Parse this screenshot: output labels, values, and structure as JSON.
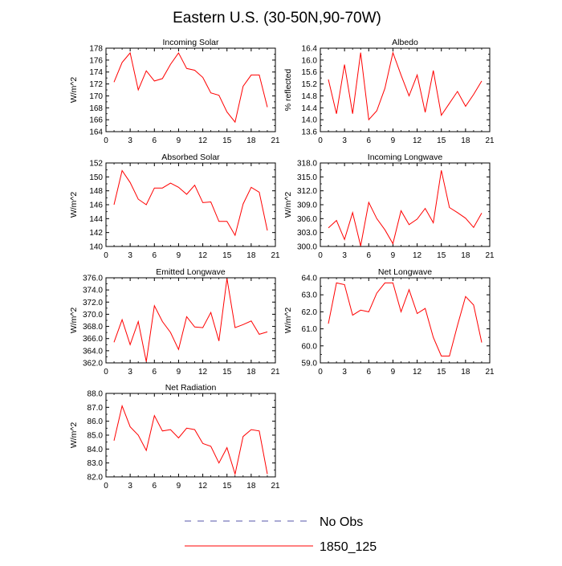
{
  "figure": {
    "title": "Eastern U.S. (30-50N,90-70W)"
  },
  "legend": [
    {
      "label": "No Obs",
      "color": "#5555aa",
      "style": "dashed"
    },
    {
      "label": "1850_125",
      "color": "#ff0000",
      "style": "solid"
    }
  ],
  "chart_data": [
    {
      "type": "line",
      "title": "Incoming Solar",
      "ylabel": "W/m^2",
      "xlim": [
        0,
        21
      ],
      "xticks": [
        0,
        3,
        6,
        9,
        12,
        15,
        18,
        21
      ],
      "ylim": [
        164,
        178
      ],
      "yticks": [
        "164",
        "166",
        "168",
        "170",
        "172",
        "174",
        "176",
        "178"
      ],
      "x": [
        1,
        2,
        3,
        4,
        5,
        6,
        7,
        8,
        9,
        10,
        11,
        12,
        13,
        14,
        15,
        16,
        17,
        18,
        19,
        20
      ],
      "series": [
        {
          "name": "1850_125",
          "color": "#ff0000",
          "values": [
            172.3,
            175.6,
            177.2,
            171.0,
            174.2,
            172.5,
            172.9,
            175.3,
            177.2,
            174.6,
            174.3,
            173.1,
            170.5,
            170.1,
            167.3,
            165.6,
            171.6,
            173.5,
            173.5,
            168.1
          ]
        }
      ]
    },
    {
      "type": "line",
      "title": "Albedo",
      "ylabel": "% reflected",
      "xlim": [
        0,
        21
      ],
      "xticks": [
        0,
        3,
        6,
        9,
        12,
        15,
        18,
        21
      ],
      "ylim": [
        13.6,
        16.4
      ],
      "yticks": [
        "13.6",
        "14.0",
        "14.4",
        "14.8",
        "15.2",
        "15.6",
        "16.0",
        "16.4"
      ],
      "x": [
        1,
        2,
        3,
        4,
        5,
        6,
        7,
        8,
        9,
        10,
        11,
        12,
        13,
        14,
        15,
        16,
        17,
        18,
        19,
        20
      ],
      "series": [
        {
          "name": "1850_125",
          "color": "#ff0000",
          "values": [
            15.35,
            14.2,
            15.85,
            14.2,
            16.25,
            14.0,
            14.3,
            15.05,
            16.25,
            15.5,
            14.8,
            15.5,
            14.25,
            15.65,
            14.15,
            14.55,
            14.95,
            14.45,
            14.85,
            15.3
          ]
        }
      ]
    },
    {
      "type": "line",
      "title": "Absorbed Solar",
      "ylabel": "W/m^2",
      "xlim": [
        0,
        21
      ],
      "xticks": [
        0,
        3,
        6,
        9,
        12,
        15,
        18,
        21
      ],
      "ylim": [
        140,
        152
      ],
      "yticks": [
        "140",
        "142",
        "144",
        "146",
        "148",
        "150",
        "152"
      ],
      "x": [
        1,
        2,
        3,
        4,
        5,
        6,
        7,
        8,
        9,
        10,
        11,
        12,
        13,
        14,
        15,
        16,
        17,
        18,
        19,
        20
      ],
      "series": [
        {
          "name": "1850_125",
          "color": "#ff0000",
          "values": [
            146.0,
            150.9,
            149.2,
            146.8,
            146.0,
            148.4,
            148.4,
            149.1,
            148.5,
            147.5,
            148.8,
            146.3,
            146.4,
            143.6,
            143.6,
            141.6,
            146.1,
            148.5,
            147.8,
            142.3
          ]
        }
      ]
    },
    {
      "type": "line",
      "title": "Incoming Longwave",
      "ylabel": "W/m^2",
      "xlim": [
        0,
        21
      ],
      "xticks": [
        0,
        3,
        6,
        9,
        12,
        15,
        18,
        21
      ],
      "ylim": [
        300,
        318
      ],
      "yticks": [
        "300.0",
        "303.0",
        "306.0",
        "309.0",
        "312.0",
        "315.0",
        "318.0"
      ],
      "x": [
        1,
        2,
        3,
        4,
        5,
        6,
        7,
        8,
        9,
        10,
        11,
        12,
        13,
        14,
        15,
        16,
        17,
        18,
        19,
        20
      ],
      "series": [
        {
          "name": "1850_125",
          "color": "#ff0000",
          "values": [
            304.0,
            305.6,
            301.5,
            307.3,
            300.1,
            309.5,
            306.0,
            303.6,
            300.6,
            307.7,
            304.7,
            305.9,
            308.2,
            305.1,
            316.4,
            308.4,
            307.3,
            306.1,
            304.1,
            307.2
          ]
        }
      ]
    },
    {
      "type": "line",
      "title": "Emitted Longwave",
      "ylabel": "W/m^2",
      "xlim": [
        0,
        21
      ],
      "xticks": [
        0,
        3,
        6,
        9,
        12,
        15,
        18,
        21
      ],
      "ylim": [
        362,
        376
      ],
      "yticks": [
        "362.0",
        "364.0",
        "366.0",
        "368.0",
        "370.0",
        "372.0",
        "374.0",
        "376.0"
      ],
      "x": [
        1,
        2,
        3,
        4,
        5,
        6,
        7,
        8,
        9,
        10,
        11,
        12,
        13,
        14,
        15,
        16,
        17,
        18,
        19,
        20
      ],
      "series": [
        {
          "name": "1850_125",
          "color": "#ff0000",
          "values": [
            365.4,
            369.1,
            365.0,
            368.8,
            362.2,
            371.4,
            368.8,
            367.0,
            364.2,
            369.6,
            367.9,
            367.8,
            370.3,
            365.6,
            375.9,
            367.8,
            368.3,
            368.9,
            366.7,
            367.1
          ]
        }
      ]
    },
    {
      "type": "line",
      "title": "Net Longwave",
      "ylabel": "W/m^2",
      "xlim": [
        0,
        21
      ],
      "xticks": [
        0,
        3,
        6,
        9,
        12,
        15,
        18,
        21
      ],
      "ylim": [
        59,
        64
      ],
      "yticks": [
        "59.0",
        "60.0",
        "61.0",
        "62.0",
        "63.0",
        "64.0"
      ],
      "x": [
        1,
        2,
        3,
        4,
        5,
        6,
        7,
        8,
        9,
        10,
        11,
        12,
        13,
        14,
        15,
        16,
        17,
        18,
        19,
        20
      ],
      "series": [
        {
          "name": "1850_125",
          "color": "#ff0000",
          "values": [
            61.3,
            63.7,
            63.6,
            61.8,
            62.1,
            62.0,
            63.1,
            63.7,
            63.7,
            62.0,
            63.3,
            61.9,
            62.2,
            60.5,
            59.4,
            59.4,
            61.2,
            62.9,
            62.4,
            60.2
          ]
        }
      ]
    },
    {
      "type": "line",
      "title": "Net Radiation",
      "ylabel": "W/m^2",
      "xlim": [
        0,
        21
      ],
      "xticks": [
        0,
        3,
        6,
        9,
        12,
        15,
        18,
        21
      ],
      "ylim": [
        82,
        88
      ],
      "yticks": [
        "82.0",
        "83.0",
        "84.0",
        "85.0",
        "86.0",
        "87.0",
        "88.0"
      ],
      "x": [
        1,
        2,
        3,
        4,
        5,
        6,
        7,
        8,
        9,
        10,
        11,
        12,
        13,
        14,
        15,
        16,
        17,
        18,
        19,
        20
      ],
      "series": [
        {
          "name": "1850_125",
          "color": "#ff0000",
          "values": [
            84.6,
            87.1,
            85.6,
            85.0,
            83.9,
            86.4,
            85.3,
            85.4,
            84.8,
            85.5,
            85.4,
            84.4,
            84.2,
            83.0,
            84.1,
            82.2,
            84.9,
            85.4,
            85.3,
            82.2
          ]
        }
      ]
    }
  ]
}
